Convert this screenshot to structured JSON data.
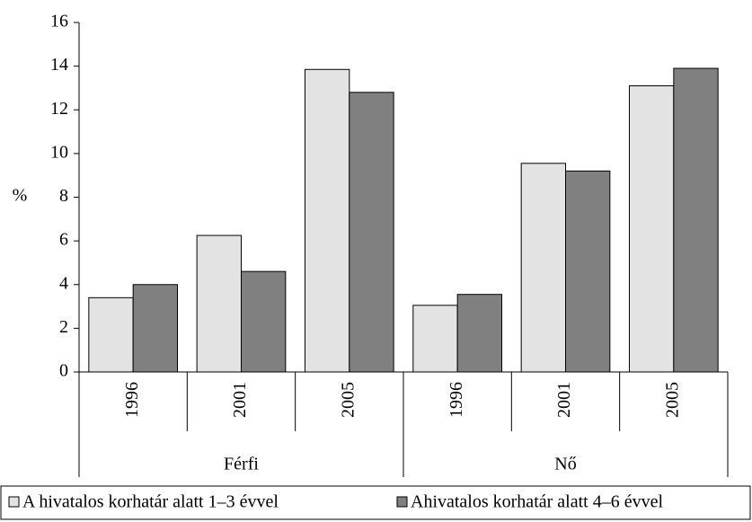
{
  "chart_data": {
    "type": "bar",
    "y_label": "%",
    "groups": [
      {
        "name": "Férfi",
        "categories": [
          "1996",
          "2001",
          "2005"
        ]
      },
      {
        "name": "Nő",
        "categories": [
          "1996",
          "2001",
          "2005"
        ]
      }
    ],
    "series": [
      {
        "name": "A hivatalos korhatár alatt 1–3 évvel",
        "color": "#e3e3e3",
        "values": [
          3.4,
          6.25,
          13.85,
          3.05,
          9.55,
          13.1
        ]
      },
      {
        "name": "Ahivatalos korhatár alatt 4–6 évvel",
        "color": "#808080",
        "values": [
          4.0,
          4.6,
          12.8,
          3.55,
          9.2,
          13.9
        ]
      }
    ],
    "ylim": [
      0,
      16
    ],
    "yticks": [
      0,
      2,
      4,
      6,
      8,
      10,
      12,
      14,
      16
    ],
    "grid": false,
    "legend": "bottom"
  }
}
